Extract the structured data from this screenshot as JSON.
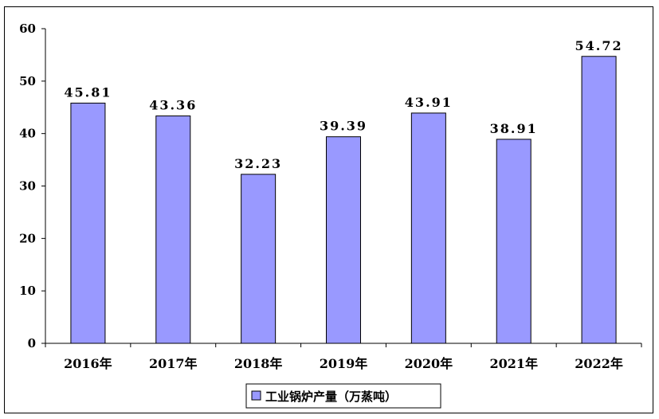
{
  "chart_data": {
    "type": "bar",
    "categories": [
      "2016年",
      "2017年",
      "2018年",
      "2019年",
      "2020年",
      "2021年",
      "2022年"
    ],
    "series": [
      {
        "name": "工业锅炉产量（万蒸吨）",
        "values": [
          45.81,
          43.36,
          32.23,
          39.39,
          43.91,
          38.91,
          54.72
        ],
        "labels": [
          "45.81",
          "43.36",
          "32.23",
          "39.39",
          "43.91",
          "38.91",
          "54.72"
        ]
      }
    ],
    "title": "",
    "xlabel": "",
    "ylabel": "",
    "ylim": [
      0,
      60
    ],
    "yticks": [
      0,
      10,
      20,
      30,
      40,
      50,
      60
    ],
    "grid": false,
    "legend_position": "bottom",
    "colors": {
      "bar_fill": "#9999ff",
      "bar_stroke": "#000000",
      "axis": "#000000"
    }
  }
}
